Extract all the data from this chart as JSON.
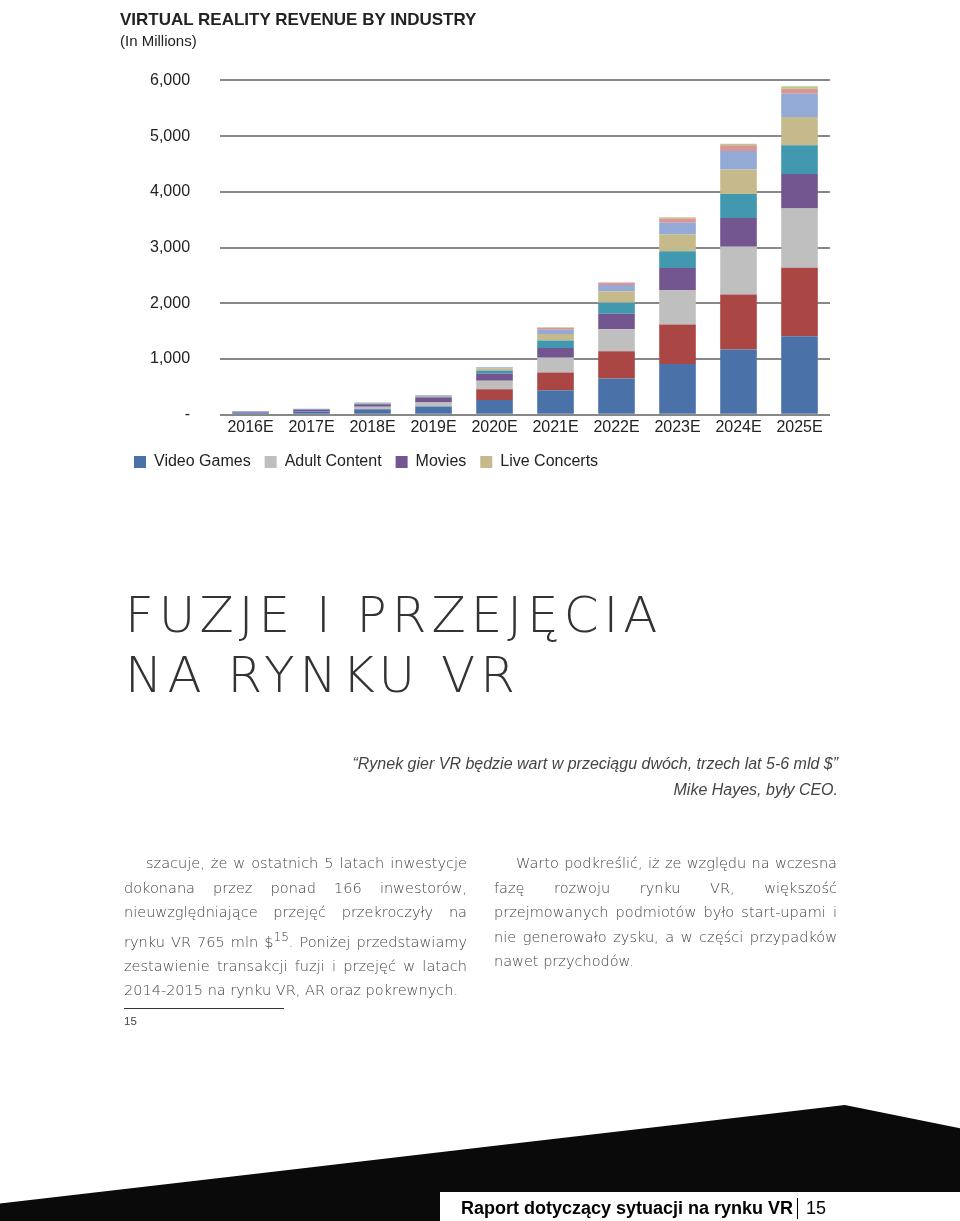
{
  "chart_data": {
    "type": "bar",
    "title": "VIRTUAL REALITY REVENUE BY INDUSTRY",
    "subtitle": "(In Millions)",
    "categories": [
      "2016E",
      "2017E",
      "2018E",
      "2019E",
      "2020E",
      "2021E",
      "2022E",
      "2023E",
      "2024E",
      "2025E"
    ],
    "stacked": true,
    "series": [
      {
        "name": "Video Games",
        "color": "#4a72a8",
        "values": [
          40,
          60,
          100,
          150,
          265,
          440,
          650,
          910,
          1170,
          1410
        ]
      },
      {
        "color": "#aa4644",
        "values": [
          0,
          0,
          null,
          null,
          195,
          320,
          490,
          710,
          990,
          1230
        ]
      },
      {
        "name": "Adult Content",
        "color": "#bfbfbf",
        "values": [
          0,
          null,
          45,
          70,
          150,
          265,
          395,
          620,
          855,
          1060
        ]
      },
      {
        "name": "Movies",
        "color": "#735690",
        "values": [
          20,
          35,
          45,
          90,
          130,
          175,
          280,
          395,
          515,
          620
        ]
      },
      {
        "color": "#4198af",
        "values": [
          0,
          5,
          10,
          15,
          55,
          135,
          195,
          300,
          430,
          515
        ]
      },
      {
        "name": "Live Concerts",
        "color": "#c6b98b",
        "values": [
          0,
          5,
          10,
          15,
          40,
          115,
          205,
          305,
          440,
          510
        ]
      },
      {
        "color": "#93a9d6",
        "values": [
          0,
          5,
          12,
          15,
          20,
          75,
          115,
          205,
          335,
          415
        ]
      },
      {
        "color": "#d99694",
        "values": [
          0,
          0,
          0,
          0,
          0,
          35,
          45,
          75,
          100,
          90
        ]
      },
      {
        "color": "#b8cc8a",
        "values": [
          0,
          0,
          0,
          0,
          0,
          10,
          null,
          25,
          30,
          45
        ]
      }
    ],
    "ylim": [
      0,
      6000
    ],
    "yticks": [
      {
        "value": 0,
        "label": "-"
      },
      {
        "value": 1000,
        "label": "1,000"
      },
      {
        "value": 2000,
        "label": "2,000"
      },
      {
        "value": 3000,
        "label": "3,000"
      },
      {
        "value": 4000,
        "label": "4,000"
      },
      {
        "value": 5000,
        "label": "5,000"
      },
      {
        "value": 6000,
        "label": "6,000"
      }
    ],
    "grid": "y",
    "legend": "bottom",
    "annotations": [
      "FUZJE I PRZEJĘCIA NA RYNKU VR",
      "“Rynek gier VR będzie wart w przeciągu dwóch, trzech lat 5-6 mld $”",
      "Mike Hayes, były CEO.",
      "szacuje, że w ostatnich 5 latach inwestycje dokonana przez ponad 166 inwestorów, nieuwzględniające przejęć przekroczyły na rynku VR 765 mln $$^{15}$. Poniżej przedstawiamy zestawienie transakcji fuzji i przejęć w latach 2014-2015 na rynku VR, AR oraz pokrewnych.",
      "Warto podkreślić, iż ze względu na wczesna fazę rozwoju rynku VR, większość przejmowanych podmiotów było start-upami i nie generowało zysku, a w części przypadków nawet przychodów.",
      "15",
      "Raport dotyczący sytuacji na rynku VR",
      "15"
    ]
  }
}
